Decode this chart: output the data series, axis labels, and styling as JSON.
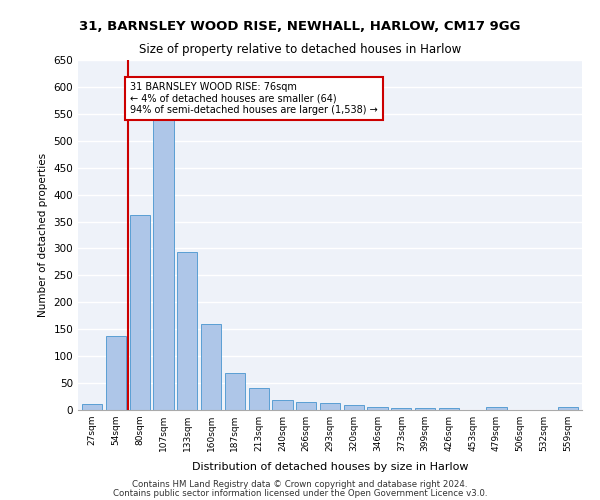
{
  "title_line1": "31, BARNSLEY WOOD RISE, NEWHALL, HARLOW, CM17 9GG",
  "title_line2": "Size of property relative to detached houses in Harlow",
  "xlabel": "Distribution of detached houses by size in Harlow",
  "ylabel": "Number of detached properties",
  "footer_line1": "Contains HM Land Registry data © Crown copyright and database right 2024.",
  "footer_line2": "Contains public sector information licensed under the Open Government Licence v3.0.",
  "annotation_line1": "31 BARNSLEY WOOD RISE: 76sqm",
  "annotation_line2": "← 4% of detached houses are smaller (64)",
  "annotation_line3": "94% of semi-detached houses are larger (1,538) →",
  "bar_labels": [
    "27sqm",
    "54sqm",
    "80sqm",
    "107sqm",
    "133sqm",
    "160sqm",
    "187sqm",
    "213sqm",
    "240sqm",
    "266sqm",
    "293sqm",
    "320sqm",
    "346sqm",
    "373sqm",
    "399sqm",
    "426sqm",
    "453sqm",
    "479sqm",
    "506sqm",
    "532sqm",
    "559sqm"
  ],
  "bar_values": [
    12,
    137,
    363,
    538,
    293,
    160,
    68,
    40,
    18,
    15,
    13,
    10,
    5,
    3,
    3,
    3,
    0,
    5,
    0,
    0,
    5
  ],
  "bar_color": "#aec6e8",
  "bar_edge_color": "#5a9fd4",
  "property_line_x": 2.0,
  "property_size": 76,
  "ylim": [
    0,
    650
  ],
  "yticks": [
    0,
    50,
    100,
    150,
    200,
    250,
    300,
    350,
    400,
    450,
    500,
    550,
    600,
    650
  ],
  "bg_color": "#eef2f9",
  "grid_color": "#ffffff",
  "annotation_box_color": "#ffffff",
  "annotation_box_edge": "#cc0000",
  "vline_color": "#cc0000"
}
